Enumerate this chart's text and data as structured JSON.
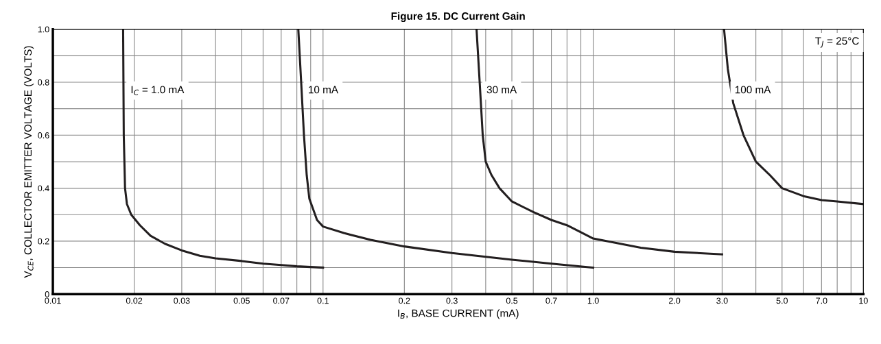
{
  "chart_data": {
    "type": "line",
    "title": "Figure 15. DC Current Gain",
    "xlabel": "I$_{B}$, BASE CURRENT (mA)",
    "ylabel": "V$_{CE}$, COLLECTOR EMITTER VOLTAGE (VOLTS)",
    "log": "x",
    "grid": true,
    "legend": false,
    "marker": "none",
    "line_style": "solid",
    "xlim": [
      0.01,
      10
    ],
    "ylim": [
      0,
      1.0
    ],
    "xticks": [
      0.01,
      0.02,
      0.03,
      {
        "value": 0.04,
        "label": null
      },
      0.05,
      {
        "value": 0.06,
        "label": null
      },
      0.07,
      {
        "value": 0.08,
        "label": null
      },
      {
        "value": 0.09,
        "label": null
      },
      0.1,
      0.2,
      0.3,
      {
        "value": 0.4,
        "label": null
      },
      0.5,
      {
        "value": 0.6,
        "label": null
      },
      0.7,
      {
        "value": 0.8,
        "label": null
      },
      {
        "value": 0.9,
        "label": null
      },
      {
        "value": 1,
        "label": "1.0"
      },
      {
        "value": 2,
        "label": "2.0"
      },
      {
        "value": 3,
        "label": "3.0"
      },
      {
        "value": 4,
        "label": null
      },
      {
        "value": 5,
        "label": "5.0"
      },
      {
        "value": 6,
        "label": null
      },
      {
        "value": 7,
        "label": "7.0"
      },
      {
        "value": 8,
        "label": null
      },
      {
        "value": 9,
        "label": null
      },
      10
    ],
    "yticks": [
      0,
      {
        "value": 0.1,
        "label": null
      },
      0.2,
      {
        "value": 0.3,
        "label": null
      },
      0.4,
      {
        "value": 0.5,
        "label": null
      },
      0.6,
      {
        "value": 0.7,
        "label": null
      },
      0.8,
      {
        "value": 0.9,
        "label": null
      },
      {
        "value": 1.0,
        "label": "1.0"
      }
    ],
    "series": [
      {
        "name": "I$_{C}$ = 1.0 mA",
        "color": "#231f20",
        "x": [
          0.0182,
          0.0183,
          0.0185,
          0.0188,
          0.0195,
          0.021,
          0.023,
          0.026,
          0.03,
          0.035,
          0.04,
          0.05,
          0.06,
          0.07,
          0.08,
          0.1
        ],
        "values": [
          1.0,
          0.6,
          0.4,
          0.34,
          0.3,
          0.26,
          0.22,
          0.19,
          0.165,
          0.145,
          0.135,
          0.125,
          0.115,
          0.11,
          0.105,
          0.1
        ]
      },
      {
        "name": "10 mA",
        "color": "#231f20",
        "x": [
          0.081,
          0.083,
          0.085,
          0.087,
          0.089,
          0.095,
          0.1,
          0.12,
          0.15,
          0.2,
          0.3,
          0.5,
          0.7,
          1.0
        ],
        "values": [
          1.0,
          0.8,
          0.6,
          0.45,
          0.36,
          0.28,
          0.255,
          0.23,
          0.205,
          0.18,
          0.155,
          0.13,
          0.115,
          0.1
        ]
      },
      {
        "name": "30 mA",
        "color": "#231f20",
        "x": [
          0.37,
          0.38,
          0.39,
          0.4,
          0.42,
          0.45,
          0.5,
          0.6,
          0.7,
          0.8,
          1.0,
          1.5,
          2.0,
          3.0
        ],
        "values": [
          1.0,
          0.8,
          0.6,
          0.5,
          0.45,
          0.4,
          0.35,
          0.31,
          0.28,
          0.26,
          0.21,
          0.175,
          0.16,
          0.15
        ]
      },
      {
        "name": "100 mA",
        "color": "#231f20",
        "x": [
          3.05,
          3.15,
          3.3,
          3.6,
          4.0,
          4.5,
          5.0,
          6.0,
          7.0,
          8.0,
          10
        ],
        "values": [
          1.0,
          0.85,
          0.72,
          0.6,
          0.5,
          0.45,
          0.4,
          0.37,
          0.355,
          0.35,
          0.34
        ]
      }
    ],
    "annotations": [
      "T$_{J}$ = 25°C"
    ]
  }
}
